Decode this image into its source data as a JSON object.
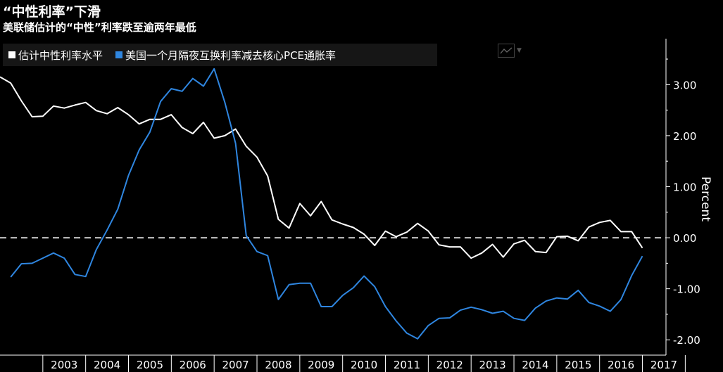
{
  "title": "“中性利率”下滑",
  "subtitle": "美联储估计的“中性”利率跌至逾两年最低",
  "legend": [
    {
      "label": "估计中性利率水平",
      "color": "#ffffff"
    },
    {
      "label": "美国一个月隔夜互换利率减去核心PCE通胀率",
      "color": "#2f86e0"
    }
  ],
  "chart_icon": "line-chart-icon",
  "chart_data": {
    "type": "line",
    "ylabel": "Percent",
    "ylim": [
      -2.3,
      3.9
    ],
    "xlim": [
      2002.0,
      2017.55
    ],
    "yticks": [
      3.0,
      2.0,
      1.0,
      0.0,
      -1.0,
      -2.0
    ],
    "ytick_labels": [
      "3.00",
      "2.00",
      "1.00",
      "0.00",
      "-1.00",
      "-2.00"
    ],
    "xtick_labels": [
      "2003",
      "2004",
      "2005",
      "2006",
      "2007",
      "2008",
      "2009",
      "2010",
      "2011",
      "2012",
      "2013",
      "2014",
      "2015",
      "2016",
      "2017"
    ],
    "xtick_values": [
      2003,
      2004,
      2005,
      2006,
      2007,
      2008,
      2009,
      2010,
      2011,
      2012,
      2013,
      2014,
      2015,
      2016,
      2017
    ],
    "zero_line": {
      "value": 0.0,
      "style": "dashed"
    },
    "grid": false,
    "series": [
      {
        "name": "估计中性利率水平",
        "color": "#ffffff",
        "points": [
          [
            2002.0,
            3.15
          ],
          [
            2002.25,
            3.03
          ],
          [
            2002.5,
            2.68
          ],
          [
            2002.75,
            2.37
          ],
          [
            2003.0,
            2.38
          ],
          [
            2003.25,
            2.58
          ],
          [
            2003.5,
            2.54
          ],
          [
            2003.75,
            2.6
          ],
          [
            2004.0,
            2.65
          ],
          [
            2004.25,
            2.49
          ],
          [
            2004.5,
            2.43
          ],
          [
            2004.75,
            2.55
          ],
          [
            2005.0,
            2.41
          ],
          [
            2005.25,
            2.23
          ],
          [
            2005.5,
            2.32
          ],
          [
            2005.75,
            2.32
          ],
          [
            2006.0,
            2.41
          ],
          [
            2006.25,
            2.16
          ],
          [
            2006.5,
            2.04
          ],
          [
            2006.75,
            2.26
          ],
          [
            2007.0,
            1.95
          ],
          [
            2007.25,
            2.0
          ],
          [
            2007.5,
            2.13
          ],
          [
            2007.75,
            1.79
          ],
          [
            2008.0,
            1.58
          ],
          [
            2008.25,
            1.21
          ],
          [
            2008.5,
            0.36
          ],
          [
            2008.75,
            0.19
          ],
          [
            2009.0,
            0.67
          ],
          [
            2009.25,
            0.43
          ],
          [
            2009.5,
            0.71
          ],
          [
            2009.75,
            0.35
          ],
          [
            2010.0,
            0.27
          ],
          [
            2010.25,
            0.2
          ],
          [
            2010.5,
            0.07
          ],
          [
            2010.75,
            -0.15
          ],
          [
            2011.0,
            0.13
          ],
          [
            2011.25,
            0.02
          ],
          [
            2011.5,
            0.11
          ],
          [
            2011.75,
            0.28
          ],
          [
            2012.0,
            0.13
          ],
          [
            2012.25,
            -0.14
          ],
          [
            2012.5,
            -0.18
          ],
          [
            2012.75,
            -0.18
          ],
          [
            2013.0,
            -0.4
          ],
          [
            2013.25,
            -0.3
          ],
          [
            2013.5,
            -0.13
          ],
          [
            2013.75,
            -0.38
          ],
          [
            2014.0,
            -0.12
          ],
          [
            2014.25,
            -0.05
          ],
          [
            2014.5,
            -0.27
          ],
          [
            2014.75,
            -0.29
          ],
          [
            2015.0,
            0.02
          ],
          [
            2015.25,
            0.03
          ],
          [
            2015.5,
            -0.06
          ],
          [
            2015.75,
            0.21
          ],
          [
            2016.0,
            0.3
          ],
          [
            2016.25,
            0.34
          ],
          [
            2016.5,
            0.12
          ],
          [
            2016.75,
            0.12
          ],
          [
            2017.0,
            -0.2
          ]
        ]
      },
      {
        "name": "美国一个月隔夜互换利率减去核心PCE通胀率",
        "color": "#2f86e0",
        "points": [
          [
            2002.25,
            -0.77
          ],
          [
            2002.5,
            -0.51
          ],
          [
            2002.75,
            -0.5
          ],
          [
            2003.0,
            -0.4
          ],
          [
            2003.25,
            -0.3
          ],
          [
            2003.5,
            -0.4
          ],
          [
            2003.75,
            -0.72
          ],
          [
            2004.0,
            -0.76
          ],
          [
            2004.25,
            -0.23
          ],
          [
            2004.5,
            0.15
          ],
          [
            2004.75,
            0.56
          ],
          [
            2005.0,
            1.22
          ],
          [
            2005.25,
            1.72
          ],
          [
            2005.5,
            2.07
          ],
          [
            2005.75,
            2.67
          ],
          [
            2006.0,
            2.92
          ],
          [
            2006.25,
            2.87
          ],
          [
            2006.5,
            3.12
          ],
          [
            2006.75,
            2.97
          ],
          [
            2007.0,
            3.31
          ],
          [
            2007.25,
            2.65
          ],
          [
            2007.5,
            1.85
          ],
          [
            2007.75,
            0.04
          ],
          [
            2008.0,
            -0.27
          ],
          [
            2008.25,
            -0.35
          ],
          [
            2008.5,
            -1.21
          ],
          [
            2008.75,
            -0.92
          ],
          [
            2009.0,
            -0.89
          ],
          [
            2009.25,
            -0.89
          ],
          [
            2009.5,
            -1.35
          ],
          [
            2009.75,
            -1.35
          ],
          [
            2010.0,
            -1.13
          ],
          [
            2010.25,
            -0.98
          ],
          [
            2010.5,
            -0.75
          ],
          [
            2010.75,
            -0.96
          ],
          [
            2011.0,
            -1.35
          ],
          [
            2011.25,
            -1.63
          ],
          [
            2011.5,
            -1.87
          ],
          [
            2011.75,
            -1.98
          ],
          [
            2012.0,
            -1.72
          ],
          [
            2012.25,
            -1.58
          ],
          [
            2012.5,
            -1.57
          ],
          [
            2012.75,
            -1.42
          ],
          [
            2013.0,
            -1.36
          ],
          [
            2013.25,
            -1.41
          ],
          [
            2013.5,
            -1.48
          ],
          [
            2013.75,
            -1.44
          ],
          [
            2014.0,
            -1.58
          ],
          [
            2014.25,
            -1.62
          ],
          [
            2014.5,
            -1.38
          ],
          [
            2014.75,
            -1.24
          ],
          [
            2015.0,
            -1.18
          ],
          [
            2015.25,
            -1.2
          ],
          [
            2015.5,
            -1.03
          ],
          [
            2015.75,
            -1.27
          ],
          [
            2016.0,
            -1.34
          ],
          [
            2016.25,
            -1.44
          ],
          [
            2016.5,
            -1.21
          ],
          [
            2016.75,
            -0.74
          ],
          [
            2017.0,
            -0.36
          ]
        ]
      }
    ]
  }
}
